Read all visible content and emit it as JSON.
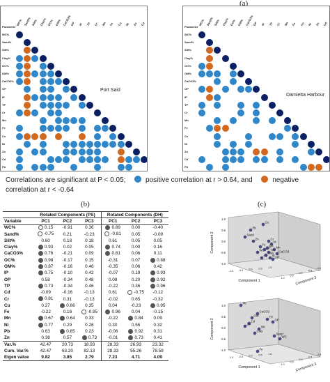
{
  "labels": {
    "a": "(a)",
    "b": "(b)",
    "c": "(c)"
  },
  "matrices": [
    {
      "id": "ps",
      "title": "Port Said",
      "header": "Parameter"
    },
    {
      "id": "dh",
      "title": "Damietta Harbour",
      "header": "Parameter"
    }
  ],
  "parameters": [
    "WC%",
    "Sand%",
    "Silt%",
    "Clay%",
    "OC%",
    "OM%",
    "CaCO3%",
    "OP",
    "IP",
    "TP",
    "Cr",
    "Mn",
    "Fe",
    "Cu",
    "Ni",
    "Zn",
    "Cd",
    "Pb"
  ],
  "legend": {
    "text1": "Correlations are significant at P < 0.05;",
    "text2": "positive correlation at r > 0.64, and",
    "text3": "negative correlation at r < -0.64",
    "pos_color": "#2f86c9",
    "neg_color": "#d2691e"
  },
  "table": {
    "group_ps": "Rotated Components (PS)",
    "group_dh": "Rotated Components (DH)",
    "col_variable": "Variable",
    "cols": [
      "PC1",
      "PC2",
      "PC3",
      "PC1",
      "PC2",
      "PC3"
    ],
    "rows": [
      {
        "v": "WC%",
        "c": [
          "0.15",
          "-0.91",
          "0.36",
          "0.89",
          "0.00",
          "-0.40"
        ],
        "m": [
          "o",
          "",
          "",
          "f",
          "",
          ""
        ]
      },
      {
        "v": "Sand%",
        "c": [
          "-0.75",
          "0.21",
          "-0.23",
          "-0.81",
          "0.05",
          "-0.09"
        ],
        "m": [
          "o",
          "",
          "",
          "o",
          "",
          ""
        ]
      },
      {
        "v": "Silt%",
        "c": [
          "0.60",
          "0.18",
          "0.18",
          "0.61",
          "0.05",
          "0.05"
        ],
        "m": [
          "",
          "",
          "",
          "",
          "",
          ""
        ]
      },
      {
        "v": "Clay%",
        "c": [
          "0.93",
          "0.02",
          "0.05",
          "0.74",
          "0.00",
          "0.16"
        ],
        "m": [
          "f",
          "",
          "",
          "f",
          "",
          ""
        ]
      },
      {
        "v": "CaCO3%",
        "c": [
          "0.76",
          "-0.21",
          "0.09",
          "0.81",
          "0.06",
          "0.11"
        ],
        "m": [
          "f",
          "",
          "",
          "f",
          "",
          ""
        ]
      },
      {
        "v": "OC%",
        "c": [
          "0.98",
          "-0.17",
          "0.15",
          "-0.31",
          "0.07",
          "0.88"
        ],
        "m": [
          "f",
          "",
          "",
          "",
          "",
          "f"
        ]
      },
      {
        "v": "OM%",
        "c": [
          "0.87",
          "-0.16",
          "0.46",
          "-0.35",
          "0.06",
          "0.42"
        ],
        "m": [
          "f",
          "",
          "",
          "",
          "",
          ""
        ]
      },
      {
        "v": "IP",
        "c": [
          "0.75",
          "-0.10",
          "0.42",
          "-0.07",
          "0.19",
          "0.93"
        ],
        "m": [
          "f",
          "",
          "",
          "",
          "",
          "f"
        ]
      },
      {
        "v": "OP",
        "c": [
          "0.58",
          "-0.34",
          "0.48",
          "0.08",
          "0.20",
          "0.92"
        ],
        "m": [
          "",
          "",
          "",
          "",
          "",
          "f"
        ]
      },
      {
        "v": "TP",
        "c": [
          "0.73",
          "-0.34",
          "0.46",
          "-0.22",
          "0.36",
          "0.96"
        ],
        "m": [
          "f",
          "",
          "",
          "",
          "",
          "f"
        ]
      },
      {
        "v": "Cd",
        "c": [
          "-0.09",
          "-0.16",
          "-0.13",
          "0.61",
          "-0.75",
          "-0.12"
        ],
        "m": [
          "",
          "",
          "",
          "",
          "o",
          ""
        ]
      },
      {
        "v": "Cr",
        "c": [
          "0.81",
          "0.31",
          "-0.13",
          "-0.02",
          "0.65",
          "-0.32"
        ],
        "m": [
          "f",
          "",
          "",
          "",
          "",
          ""
        ]
      },
      {
        "v": "Cu",
        "c": [
          "0.27",
          "0.66",
          "0.35",
          "0.04",
          "-0.23",
          "0.95"
        ],
        "m": [
          "",
          "f",
          "",
          "",
          "",
          "f"
        ]
      },
      {
        "v": "Fe",
        "c": [
          "-0.22",
          "0.16",
          "-0.95",
          "0.96",
          "0.04",
          "-0.15"
        ],
        "m": [
          "",
          "",
          "o",
          "f",
          "",
          ""
        ]
      },
      {
        "v": "Mn",
        "c": [
          "0.67",
          "0.64",
          "0.33",
          "-0.22",
          "0.84",
          "0.09"
        ],
        "m": [
          "f",
          "f",
          "",
          "",
          "f",
          ""
        ]
      },
      {
        "v": "Ni",
        "c": [
          "0.77",
          "0.29",
          "0.28",
          "0.30",
          "0.55",
          "0.32"
        ],
        "m": [
          "f",
          "",
          "",
          "",
          "",
          ""
        ]
      },
      {
        "v": "Pb",
        "c": [
          "0.63",
          "0.65",
          "0.23",
          "-0.06",
          "0.92",
          "0.31"
        ],
        "m": [
          "",
          "f",
          "",
          "",
          "f",
          ""
        ]
      },
      {
        "v": "Zn",
        "c": [
          "0.38",
          "0.57",
          "0.73",
          "-0.01",
          "0.73",
          "0.41"
        ],
        "m": [
          "",
          "",
          "f",
          "",
          "f",
          ""
        ]
      }
    ],
    "summary": [
      {
        "v": "Var.%",
        "c": [
          "42.47",
          "20.73",
          "18.93",
          "28.33",
          "26.93",
          "23.32"
        ]
      },
      {
        "v": "Cum. Var.%",
        "c": [
          "42.47",
          "63.20",
          "82.13",
          "28.33",
          "55.26",
          "78.58"
        ]
      },
      {
        "v": "Eigen value",
        "c": [
          "9.82",
          "3.85",
          "2.79",
          "7.23",
          "4.71",
          "4.09"
        ]
      }
    ]
  },
  "plots": [
    {
      "x_label": "Component 1",
      "y_label": "Component 2",
      "z_label": "Component 3",
      "ticks": [
        "1.0",
        "0.5",
        "0.0",
        "-0.5",
        "-1.0"
      ],
      "points": [
        "Pb",
        "Cu",
        "Sand",
        "Zn",
        "Fe",
        "Cr",
        "Ni",
        "Mn",
        "OC",
        "TP",
        "CaCO3",
        "Clay",
        "IP",
        "OP",
        "Cd",
        "WC",
        "Silt"
      ]
    },
    {
      "x_label": "Component 1",
      "y_label": "Component 2",
      "z_label": "Component 3",
      "ticks": [
        "1.0",
        "0.5",
        "0.0",
        "-0.5",
        "-1.0"
      ],
      "points": [
        "Pb",
        "CaCO3",
        "OM",
        "TP",
        "OP",
        "Cd",
        "Zn",
        "Silt",
        "Clay",
        "Sand",
        "WC",
        "Fe"
      ]
    }
  ]
}
